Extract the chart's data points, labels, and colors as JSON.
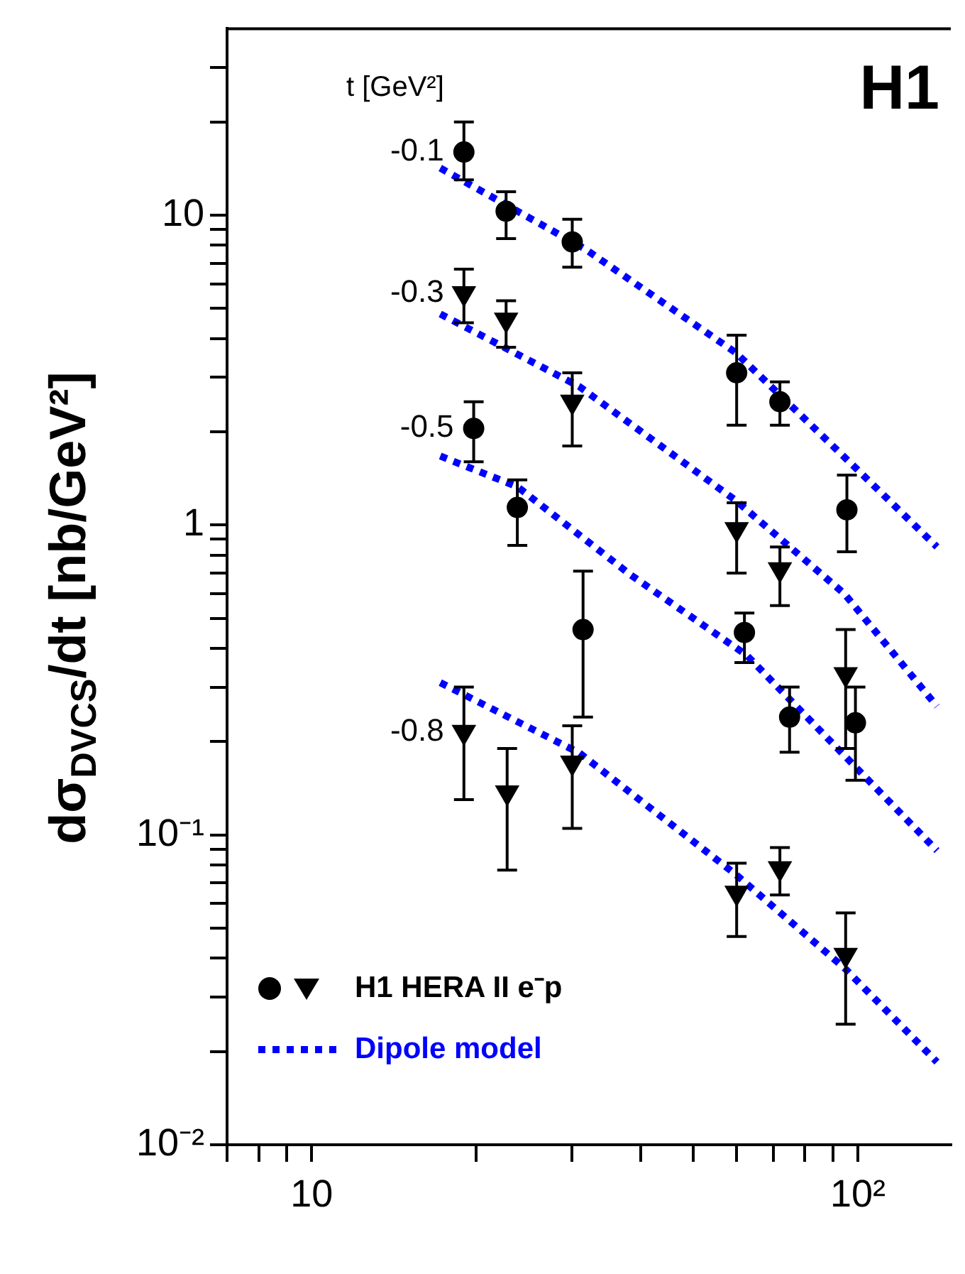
{
  "chart_data": {
    "type": "scatter",
    "ylabel": "dσ$_{DVCS}$/dt [nb/GeV²]",
    "legend_title": "t [GeV²]",
    "annotations": [
      "H1",
      "H1 HERA II e⁻p"
    ],
    "log": "xy",
    "legend": "bottom left",
    "xlim": [
      7,
      148
    ],
    "ylim": [
      0.01,
      40
    ],
    "xticks": [
      {
        "value": 7,
        "label": null
      },
      {
        "value": 8,
        "label": null
      },
      {
        "value": 9,
        "label": null
      },
      10,
      {
        "value": 20,
        "label": null
      },
      {
        "value": 30,
        "label": null
      },
      {
        "value": 40,
        "label": null
      },
      {
        "value": 50,
        "label": null
      },
      {
        "value": 60,
        "label": null
      },
      {
        "value": 70,
        "label": null
      },
      {
        "value": 80,
        "label": null
      },
      {
        "value": 90,
        "label": null
      },
      {
        "value": 100,
        "label": "10²"
      }
    ],
    "yticks": [
      {
        "value": 0.01,
        "label": "10⁻²"
      },
      {
        "value": 0.02,
        "label": null
      },
      {
        "value": 0.03,
        "label": null
      },
      {
        "value": 0.04,
        "label": null
      },
      {
        "value": 0.05,
        "label": null
      },
      {
        "value": 0.06,
        "label": null
      },
      {
        "value": 0.07,
        "label": null
      },
      {
        "value": 0.08,
        "label": null
      },
      {
        "value": 0.09,
        "label": null
      },
      {
        "value": 0.1,
        "label": "10⁻¹"
      },
      {
        "value": 0.2,
        "label": null
      },
      {
        "value": 0.3,
        "label": null
      },
      {
        "value": 0.4,
        "label": null
      },
      {
        "value": 0.5,
        "label": null
      },
      {
        "value": 0.6,
        "label": null
      },
      {
        "value": 0.7,
        "label": null
      },
      {
        "value": 0.8,
        "label": null
      },
      {
        "value": 0.9,
        "label": null
      },
      1,
      {
        "value": 2,
        "label": null
      },
      {
        "value": 3,
        "label": null
      },
      {
        "value": 4,
        "label": null
      },
      {
        "value": 5,
        "label": null
      },
      {
        "value": 6,
        "label": null
      },
      {
        "value": 7,
        "label": null
      },
      {
        "value": 8,
        "label": null
      },
      {
        "value": 9,
        "label": null
      },
      10,
      {
        "value": 20,
        "label": null
      },
      {
        "value": 30,
        "label": null
      }
    ],
    "series": [
      {
        "name": "-0.1",
        "type": "scatter",
        "marker": "circle",
        "color": "#000000",
        "x": [
          19,
          22.7,
          30,
          60,
          72,
          95.5
        ],
        "values": [
          16,
          10.3,
          8.2,
          3.1,
          2.5,
          1.12
        ],
        "errors": [
          [
            13,
            20
          ],
          [
            8.4,
            11.9
          ],
          [
            6.8,
            9.7
          ],
          [
            2.1,
            4.1
          ],
          [
            2.1,
            2.9
          ],
          [
            0.82,
            1.45
          ]
        ]
      },
      {
        "name": "-0.3",
        "type": "scatter",
        "marker": "triangle",
        "color": "#000000",
        "x": [
          19,
          22.7,
          30,
          60,
          72,
          95
        ],
        "values": [
          5.6,
          4.6,
          2.5,
          0.97,
          0.72,
          0.33
        ],
        "errors": [
          [
            4.5,
            6.7
          ],
          [
            3.75,
            5.3
          ],
          [
            1.8,
            3.1
          ],
          [
            0.7,
            1.18
          ],
          [
            0.55,
            0.85
          ],
          [
            0.19,
            0.46
          ]
        ]
      },
      {
        "name": "-0.5",
        "type": "scatter",
        "marker": "circle",
        "color": "#000000",
        "x": [
          19.8,
          23.8,
          31.4,
          62,
          75,
          99
        ],
        "values": [
          2.05,
          1.14,
          0.46,
          0.45,
          0.24,
          0.23
        ],
        "errors": [
          [
            1.6,
            2.5
          ],
          [
            0.86,
            1.4
          ],
          [
            0.24,
            0.71
          ],
          [
            0.36,
            0.52
          ],
          [
            0.185,
            0.3
          ],
          [
            0.15,
            0.3
          ]
        ]
      },
      {
        "name": "-0.8",
        "type": "scatter",
        "marker": "triangle",
        "color": "#000000",
        "x": [
          19,
          22.8,
          30,
          60,
          72,
          95
        ],
        "values": [
          0.215,
          0.137,
          0.171,
          0.065,
          0.078,
          0.041
        ],
        "errors": [
          [
            0.13,
            0.3
          ],
          [
            0.077,
            0.19
          ],
          [
            0.105,
            0.225
          ],
          [
            0.047,
            0.081
          ],
          [
            0.064,
            0.091
          ],
          [
            0.0245,
            0.056
          ]
        ]
      },
      {
        "name": "Dipole model",
        "type": "line",
        "marker": "none",
        "line_style": "dotted",
        "color": "#0000ff",
        "x": [
          17.2,
          31.6,
          59.8,
          98.3,
          139.6
        ],
        "values": [
          14.2,
          7.8,
          3.6,
          1.55,
          0.85
        ]
      },
      {
        "type": "line",
        "marker": "none",
        "line_style": "dotted",
        "color": "#0000ff",
        "x": [
          17.2,
          30.9,
          59.8,
          94.5,
          139.6
        ],
        "values": [
          4.8,
          2.8,
          1.2,
          0.6,
          0.26
        ]
      },
      {
        "type": "line",
        "marker": "none",
        "line_style": "dotted",
        "color": "#0000ff",
        "x": [
          17.2,
          23.8,
          38.4,
          62.6,
          139.6
        ],
        "values": [
          1.67,
          1.33,
          0.69,
          0.38,
          0.089
        ]
      },
      {
        "type": "line",
        "marker": "none",
        "line_style": "dotted",
        "color": "#0000ff",
        "x": [
          17.2,
          30.9,
          59.8,
          94.8,
          139.6
        ],
        "values": [
          0.31,
          0.184,
          0.0745,
          0.037,
          0.0185
        ]
      }
    ]
  }
}
